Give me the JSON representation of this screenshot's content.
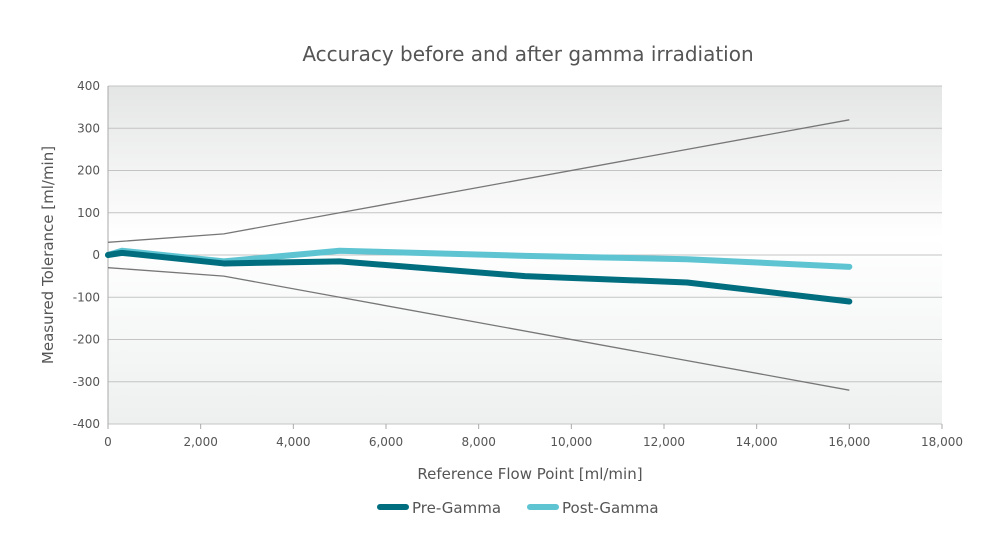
{
  "chart_data": {
    "type": "line",
    "title": "Accuracy before and after gamma irradiation",
    "xlabel": "Reference Flow Point [ml/min]",
    "ylabel": "Measured Tolerance [ml/min]",
    "xlim": [
      0,
      18000
    ],
    "ylim": [
      -400,
      400
    ],
    "x_ticks": [
      0,
      2000,
      4000,
      6000,
      8000,
      10000,
      12000,
      14000,
      16000,
      18000
    ],
    "x_tick_labels": [
      "0",
      "2,000",
      "4,000",
      "6,000",
      "8,000",
      "10,000",
      "12,000",
      "14,000",
      "16,000",
      "18,000"
    ],
    "y_ticks": [
      400,
      300,
      200,
      100,
      0,
      -100,
      -200,
      -300,
      -400
    ],
    "y_tick_labels": [
      "400",
      "300",
      "200",
      "100",
      "0",
      "-100",
      "-200",
      "-300",
      "-400"
    ],
    "grid": true,
    "legend_position": "bottom",
    "series": [
      {
        "name": "Pre-Gamma",
        "color": "#006e7f",
        "x": [
          0,
          300,
          2500,
          5000,
          9000,
          12500,
          16000
        ],
        "y": [
          0,
          5,
          -20,
          -15,
          -50,
          -65,
          -110
        ]
      },
      {
        "name": "Post-Gamma",
        "color": "#5ec4d2",
        "x": [
          0,
          300,
          2500,
          5000,
          9000,
          12500,
          16000
        ],
        "y": [
          0,
          10,
          -15,
          10,
          -2,
          -10,
          -28
        ]
      }
    ],
    "limit_lines": [
      {
        "color": "#777777",
        "x": [
          0,
          2500,
          5000,
          16000
        ],
        "y": [
          30,
          50,
          100,
          320
        ]
      },
      {
        "color": "#777777",
        "x": [
          0,
          2500,
          5000,
          16000
        ],
        "y": [
          -30,
          -50,
          -100,
          -320
        ]
      }
    ]
  }
}
